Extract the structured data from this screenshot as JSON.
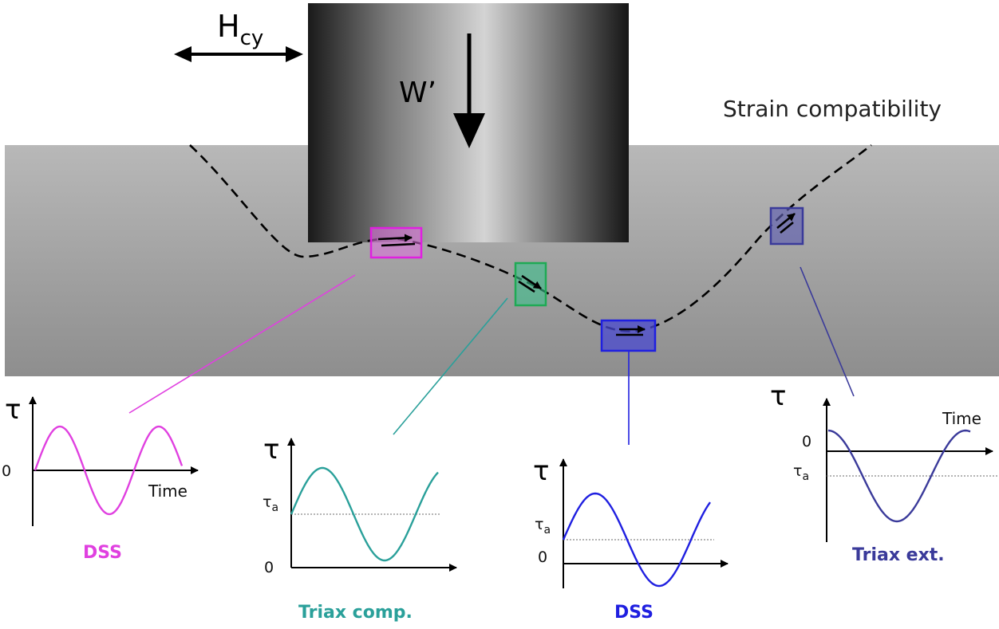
{
  "labels": {
    "horizontal_load": "H",
    "horizontal_load_sub": "cy",
    "vertical_load": "W’",
    "strain_compatibility": "Strain compatibility"
  },
  "colors": {
    "dss_top": "#e040e0",
    "triax_comp": "#2aa09a",
    "dss_bottom": "#1f1fe0",
    "triax_ext": "#3a3a9a",
    "soil": "#a8a8a8"
  },
  "plots": [
    {
      "id": "dss-top",
      "title": "DSS",
      "axis": "τ",
      "time_label": "Time",
      "zero_label": "0",
      "tau_a_label": ""
    },
    {
      "id": "triax-comp",
      "title": "Triax comp.",
      "axis": "τ",
      "time_label": "",
      "zero_label": "0",
      "tau_a_label": "τ",
      "tau_a_sub": "a"
    },
    {
      "id": "dss-bottom",
      "title": "DSS",
      "axis": "τ",
      "time_label": "",
      "zero_label": "0",
      "tau_a_label": "τ",
      "tau_a_sub": "a"
    },
    {
      "id": "triax-ext",
      "title": "Triax ext.",
      "axis": "τ",
      "time_label": "Time",
      "zero_label": "0",
      "tau_a_label": "τ",
      "tau_a_sub": "a"
    }
  ]
}
